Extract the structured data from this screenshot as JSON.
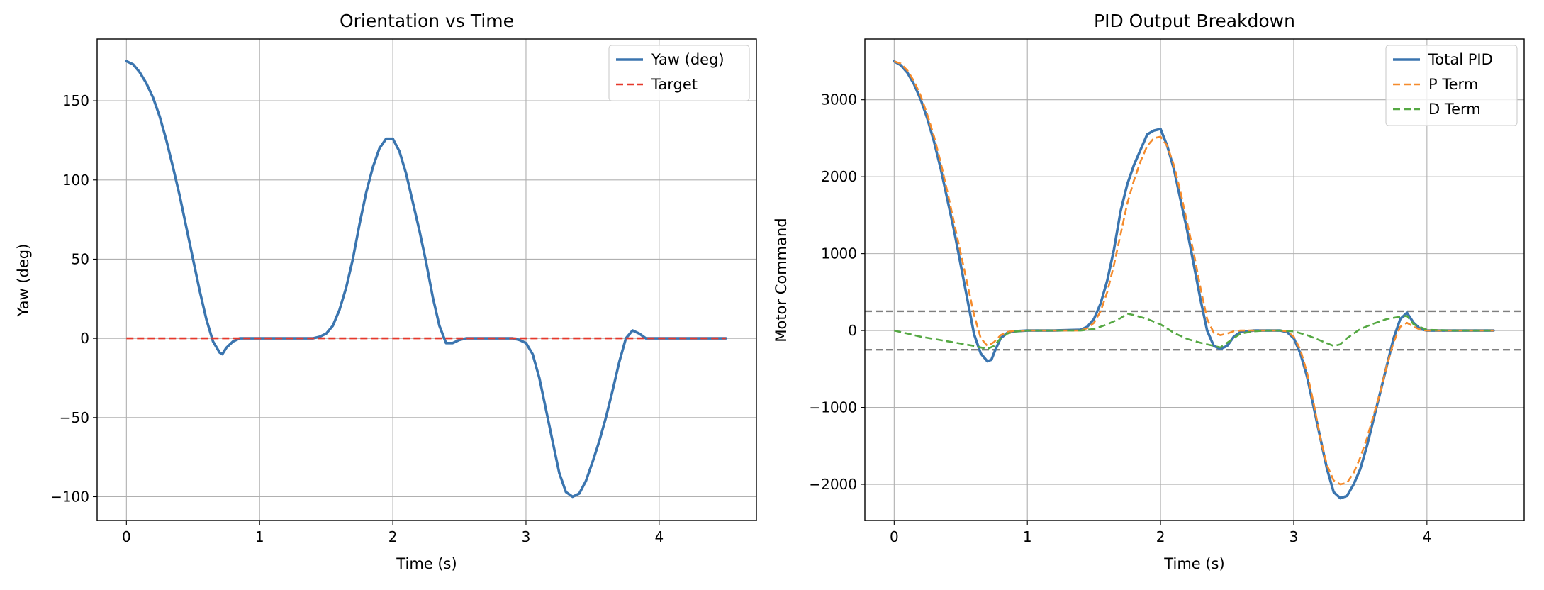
{
  "chart_data": [
    {
      "type": "line",
      "title": "Orientation vs Time",
      "xlabel": "Time (s)",
      "ylabel": "Yaw (deg)",
      "xlim": [
        -0.22,
        4.73
      ],
      "ylim": [
        -115,
        189
      ],
      "xticks": [
        0,
        1,
        2,
        3,
        4
      ],
      "yticks": [
        -100,
        -50,
        0,
        50,
        100,
        150
      ],
      "grid": true,
      "legend_position": "top-right",
      "series": [
        {
          "name": "Yaw (deg)",
          "color": "#3b75af",
          "style": "solid",
          "x": [
            0,
            0.05,
            0.1,
            0.15,
            0.2,
            0.25,
            0.3,
            0.35,
            0.4,
            0.45,
            0.5,
            0.55,
            0.6,
            0.65,
            0.7,
            0.72,
            0.75,
            0.8,
            0.85,
            0.9,
            1.0,
            1.1,
            1.2,
            1.3,
            1.4,
            1.45,
            1.5,
            1.55,
            1.6,
            1.65,
            1.7,
            1.75,
            1.8,
            1.85,
            1.9,
            1.95,
            2.0,
            2.05,
            2.1,
            2.15,
            2.2,
            2.25,
            2.3,
            2.35,
            2.4,
            2.45,
            2.5,
            2.55,
            2.6,
            2.7,
            2.8,
            2.9,
            2.95,
            3.0,
            3.05,
            3.1,
            3.15,
            3.2,
            3.25,
            3.3,
            3.35,
            3.4,
            3.45,
            3.5,
            3.55,
            3.6,
            3.65,
            3.7,
            3.75,
            3.8,
            3.85,
            3.9,
            3.95,
            4.0,
            4.1,
            4.2,
            4.3,
            4.4,
            4.5
          ],
          "y": [
            175,
            173,
            168,
            161,
            152,
            140,
            125,
            108,
            90,
            70,
            50,
            30,
            12,
            -2,
            -9,
            -10,
            -6,
            -2,
            0,
            0,
            0,
            0,
            0,
            0,
            0,
            1,
            3,
            8,
            18,
            32,
            50,
            72,
            92,
            108,
            120,
            126,
            126,
            118,
            104,
            86,
            68,
            48,
            26,
            8,
            -3,
            -3,
            -1,
            0,
            0,
            0,
            0,
            0,
            -1,
            -3,
            -10,
            -25,
            -45,
            -65,
            -85,
            -97,
            -100,
            -98,
            -90,
            -78,
            -65,
            -50,
            -33,
            -15,
            0,
            5,
            3,
            0,
            0,
            0,
            0,
            0,
            0,
            0,
            0
          ]
        },
        {
          "name": "Target",
          "color": "#e6382b",
          "style": "dashed",
          "x": [
            0,
            4.5
          ],
          "y": [
            0,
            0
          ]
        }
      ]
    },
    {
      "type": "line",
      "title": "PID Output Breakdown",
      "xlabel": "Time (s)",
      "ylabel": "Motor Command",
      "xlim": [
        -0.22,
        4.73
      ],
      "ylim": [
        -2470,
        3790
      ],
      "xticks": [
        0,
        1,
        2,
        3,
        4
      ],
      "yticks": [
        -2000,
        -1000,
        0,
        1000,
        2000,
        3000
      ],
      "grid": true,
      "legend_position": "top-right",
      "series": [
        {
          "name": "Total PID",
          "color": "#3b75af",
          "style": "solid",
          "x": [
            0,
            0.05,
            0.1,
            0.15,
            0.2,
            0.25,
            0.3,
            0.35,
            0.4,
            0.45,
            0.5,
            0.55,
            0.6,
            0.65,
            0.7,
            0.73,
            0.76,
            0.8,
            0.85,
            0.9,
            1.0,
            1.2,
            1.4,
            1.45,
            1.5,
            1.55,
            1.6,
            1.65,
            1.7,
            1.75,
            1.8,
            1.85,
            1.9,
            1.95,
            2.0,
            2.05,
            2.1,
            2.15,
            2.2,
            2.25,
            2.3,
            2.35,
            2.4,
            2.45,
            2.5,
            2.55,
            2.6,
            2.7,
            2.8,
            2.9,
            2.95,
            3.0,
            3.05,
            3.1,
            3.15,
            3.2,
            3.25,
            3.3,
            3.35,
            3.4,
            3.45,
            3.5,
            3.55,
            3.6,
            3.65,
            3.7,
            3.75,
            3.8,
            3.85,
            3.9,
            3.95,
            4.0,
            4.1,
            4.2,
            4.3,
            4.4,
            4.5
          ],
          "y": [
            3500,
            3450,
            3350,
            3200,
            3000,
            2750,
            2450,
            2100,
            1700,
            1300,
            850,
            400,
            -50,
            -300,
            -400,
            -380,
            -250,
            -100,
            -30,
            -10,
            0,
            0,
            10,
            50,
            150,
            350,
            650,
            1050,
            1550,
            1900,
            2150,
            2350,
            2550,
            2600,
            2620,
            2400,
            2100,
            1700,
            1300,
            850,
            400,
            0,
            -200,
            -240,
            -200,
            -80,
            -20,
            0,
            0,
            0,
            -20,
            -100,
            -300,
            -600,
            -1000,
            -1400,
            -1800,
            -2100,
            -2180,
            -2150,
            -2000,
            -1800,
            -1500,
            -1150,
            -800,
            -450,
            -100,
            150,
            230,
            100,
            20,
            0,
            0,
            0,
            0,
            0,
            0
          ]
        },
        {
          "name": "P Term",
          "color": "#f58b2c",
          "style": "dashed",
          "x": [
            0,
            0.05,
            0.1,
            0.15,
            0.2,
            0.25,
            0.3,
            0.35,
            0.4,
            0.45,
            0.5,
            0.55,
            0.6,
            0.65,
            0.7,
            0.75,
            0.8,
            0.85,
            0.9,
            1.0,
            1.2,
            1.4,
            1.45,
            1.5,
            1.55,
            1.6,
            1.65,
            1.7,
            1.75,
            1.8,
            1.85,
            1.9,
            1.95,
            2.0,
            2.05,
            2.1,
            2.15,
            2.2,
            2.25,
            2.3,
            2.35,
            2.4,
            2.45,
            2.5,
            2.55,
            2.6,
            2.7,
            2.8,
            2.9,
            2.95,
            3.0,
            3.05,
            3.1,
            3.15,
            3.2,
            3.25,
            3.3,
            3.35,
            3.4,
            3.45,
            3.5,
            3.55,
            3.6,
            3.65,
            3.7,
            3.75,
            3.8,
            3.85,
            3.9,
            3.95,
            4.0,
            4.1,
            4.2,
            4.3,
            4.4,
            4.5
          ],
          "y": [
            3500,
            3470,
            3380,
            3240,
            3050,
            2800,
            2520,
            2180,
            1800,
            1400,
            1000,
            600,
            200,
            -100,
            -200,
            -150,
            -60,
            -20,
            -5,
            0,
            0,
            0,
            30,
            100,
            250,
            500,
            850,
            1250,
            1650,
            1950,
            2200,
            2400,
            2500,
            2520,
            2400,
            2150,
            1800,
            1400,
            1000,
            550,
            150,
            -30,
            -60,
            -40,
            -10,
            0,
            0,
            0,
            0,
            -10,
            -80,
            -250,
            -550,
            -950,
            -1400,
            -1750,
            -1950,
            -2000,
            -1980,
            -1850,
            -1650,
            -1400,
            -1100,
            -800,
            -450,
            -150,
            50,
            100,
            50,
            10,
            0,
            0,
            0,
            0,
            0,
            0
          ]
        },
        {
          "name": "D Term",
          "color": "#55a843",
          "style": "dashed",
          "x": [
            0,
            0.1,
            0.2,
            0.3,
            0.4,
            0.5,
            0.6,
            0.7,
            0.75,
            0.8,
            0.85,
            0.9,
            1.0,
            1.2,
            1.4,
            1.5,
            1.6,
            1.7,
            1.75,
            1.8,
            1.9,
            2.0,
            2.1,
            2.2,
            2.3,
            2.4,
            2.45,
            2.5,
            2.6,
            2.7,
            2.8,
            2.9,
            3.0,
            3.1,
            3.2,
            3.3,
            3.35,
            3.4,
            3.5,
            3.6,
            3.7,
            3.8,
            3.85,
            3.9,
            4.0,
            4.2,
            4.5
          ],
          "y": [
            0,
            -40,
            -80,
            -110,
            -140,
            -170,
            -200,
            -240,
            -200,
            -100,
            -40,
            -15,
            0,
            0,
            0,
            20,
            80,
            160,
            220,
            200,
            150,
            80,
            -30,
            -110,
            -160,
            -200,
            -220,
            -160,
            -40,
            -10,
            0,
            0,
            -10,
            -60,
            -130,
            -200,
            -180,
            -100,
            20,
            90,
            150,
            180,
            190,
            80,
            10,
            0,
            0
          ]
        }
      ],
      "reference_lines": [
        {
          "y": 250,
          "color": "#7f7f7f",
          "style": "dashed"
        },
        {
          "y": -250,
          "color": "#7f7f7f",
          "style": "dashed"
        }
      ]
    }
  ]
}
